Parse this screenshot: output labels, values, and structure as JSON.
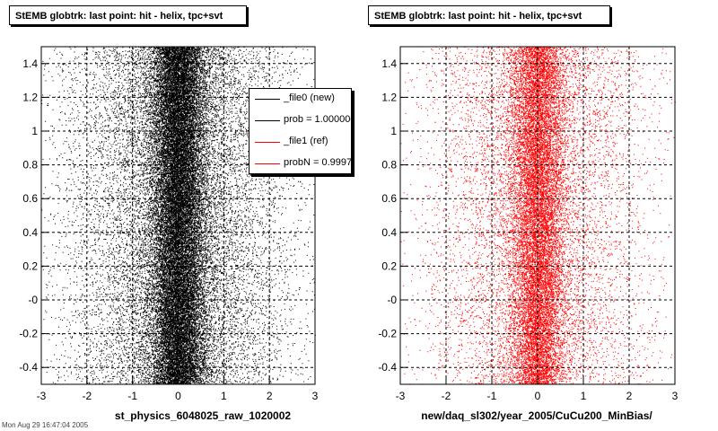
{
  "footer": "Mon Aug 29 16:47:04 2005",
  "legend": {
    "entries": [
      {
        "label": "_file0 (new)",
        "color": "#000000"
      },
      {
        "label": "prob = 1.000000",
        "color": "#000000"
      },
      {
        "label": "_file1 (ref)",
        "color": "#ff0000"
      },
      {
        "label": "probN = 0.999700",
        "color": "#ff0000"
      }
    ]
  },
  "chart_data": [
    {
      "type": "scatter",
      "title": "StEMB globtrk: last point: hit - helix, tpc+svt",
      "xlabel": "st_physics_6048025_raw_1020002",
      "ylabel": "",
      "xlim": [
        -3,
        3
      ],
      "ylim": [
        -0.5,
        1.5
      ],
      "xticks": [
        "-3",
        "-2",
        "-1",
        "0",
        "1",
        "2",
        "3"
      ],
      "yticks": [
        "-0.4",
        "-0.2",
        "-0",
        "0.2",
        "0.4",
        "0.6",
        "0.8",
        "1",
        "1.2",
        "1.4"
      ],
      "grid": true,
      "point_color": "#000000",
      "distribution": {
        "x_center": 0.0,
        "x_core_sigma": 0.3,
        "x_tail_sigma": 1.2,
        "y_uniform": [
          -0.5,
          1.5
        ],
        "approx_points": 40000
      }
    },
    {
      "type": "scatter",
      "title": "StEMB globtrk: last point: hit - helix, tpc+svt",
      "xlabel": "new/daq_sl302/year_2005/CuCu200_MinBias/",
      "ylabel": "",
      "xlim": [
        -3,
        3
      ],
      "ylim": [
        -0.5,
        1.5
      ],
      "xticks": [
        "-3",
        "-2",
        "-1",
        "0",
        "1",
        "2",
        "3"
      ],
      "yticks": [
        "-0.4",
        "-0.2",
        "-0",
        "0.2",
        "0.4",
        "0.6",
        "0.8",
        "1",
        "1.2",
        "1.4"
      ],
      "grid": true,
      "point_color": "#ff0000",
      "distribution": {
        "x_center": 0.0,
        "x_core_sigma": 0.3,
        "x_tail_sigma": 1.2,
        "y_uniform": [
          -0.5,
          1.5
        ],
        "approx_points": 22000
      }
    }
  ]
}
